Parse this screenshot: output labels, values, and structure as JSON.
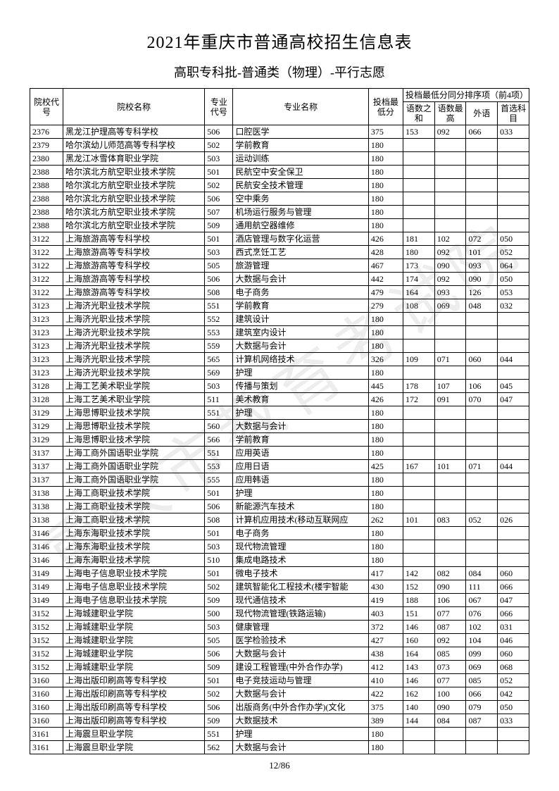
{
  "title": "2021年重庆市普通高校招生信息表",
  "subtitle": "高职专科批-普通类（物理）-平行志愿",
  "watermark": "重庆市教育考试院",
  "pager": "12/86",
  "headers": {
    "school_code": "院校代号",
    "school_name": "院校名称",
    "major_code": "专业代号",
    "major_name": "专业名称",
    "min_score": "投档最低分",
    "tiebreak_group": "投档最低分同分排序项（前4项）",
    "s1": "语数之和",
    "s2": "语数最高",
    "s3": "外语",
    "s4": "首选科目"
  },
  "rows": [
    [
      "2376",
      "黑龙江护理高等专科学校",
      "506",
      "口腔医学",
      "375",
      "153",
      "092",
      "066",
      "033"
    ],
    [
      "2379",
      "哈尔滨幼儿师范高等专科学校",
      "502",
      "学前教育",
      "180",
      "",
      "",
      "",
      ""
    ],
    [
      "2380",
      "黑龙江冰雪体育职业学院",
      "503",
      "运动训练",
      "180",
      "",
      "",
      "",
      ""
    ],
    [
      "2388",
      "哈尔滨北方航空职业技术学院",
      "501",
      "民航空中安全保卫",
      "180",
      "",
      "",
      "",
      ""
    ],
    [
      "2388",
      "哈尔滨北方航空职业技术学院",
      "502",
      "民航安全技术管理",
      "180",
      "",
      "",
      "",
      ""
    ],
    [
      "2388",
      "哈尔滨北方航空职业技术学院",
      "506",
      "空中乘务",
      "180",
      "",
      "",
      "",
      ""
    ],
    [
      "2388",
      "哈尔滨北方航空职业技术学院",
      "507",
      "机场运行服务与管理",
      "180",
      "",
      "",
      "",
      ""
    ],
    [
      "2388",
      "哈尔滨北方航空职业技术学院",
      "509",
      "通用航空器维修",
      "180",
      "",
      "",
      "",
      ""
    ],
    [
      "3122",
      "上海旅游高等专科学校",
      "501",
      "酒店管理与数字化运营",
      "426",
      "181",
      "102",
      "072",
      "050"
    ],
    [
      "3122",
      "上海旅游高等专科学校",
      "503",
      "西式烹饪工艺",
      "428",
      "180",
      "092",
      "101",
      "052"
    ],
    [
      "3122",
      "上海旅游高等专科学校",
      "505",
      "旅游管理",
      "467",
      "173",
      "090",
      "093",
      "064"
    ],
    [
      "3122",
      "上海旅游高等专科学校",
      "506",
      "大数据与会计",
      "442",
      "174",
      "092",
      "090",
      "050"
    ],
    [
      "3122",
      "上海旅游高等专科学校",
      "508",
      "电子商务",
      "479",
      "164",
      "093",
      "126",
      "053"
    ],
    [
      "3123",
      "上海济光职业技术学院",
      "551",
      "学前教育",
      "279",
      "108",
      "069",
      "048",
      "032"
    ],
    [
      "3123",
      "上海济光职业技术学院",
      "552",
      "建筑设计",
      "180",
      "",
      "",
      "",
      ""
    ],
    [
      "3123",
      "上海济光职业技术学院",
      "553",
      "建筑室内设计",
      "180",
      "",
      "",
      "",
      ""
    ],
    [
      "3123",
      "上海济光职业技术学院",
      "559",
      "大数据与会计",
      "180",
      "",
      "",
      "",
      ""
    ],
    [
      "3123",
      "上海济光职业技术学院",
      "565",
      "计算机网络技术",
      "326",
      "109",
      "071",
      "060",
      "044"
    ],
    [
      "3123",
      "上海济光职业技术学院",
      "569",
      "护理",
      "180",
      "",
      "",
      "",
      ""
    ],
    [
      "3128",
      "上海工艺美术职业学院",
      "503",
      "传播与策划",
      "445",
      "178",
      "107",
      "106",
      "045"
    ],
    [
      "3128",
      "上海工艺美术职业学院",
      "511",
      "美术教育",
      "426",
      "172",
      "091",
      "070",
      "047"
    ],
    [
      "3129",
      "上海思博职业技术学院",
      "551",
      "护理",
      "180",
      "",
      "",
      "",
      ""
    ],
    [
      "3129",
      "上海思博职业技术学院",
      "560",
      "大数据与会计",
      "180",
      "",
      "",
      "",
      ""
    ],
    [
      "3129",
      "上海思博职业技术学院",
      "566",
      "学前教育",
      "180",
      "",
      "",
      "",
      ""
    ],
    [
      "3137",
      "上海工商外国语职业学院",
      "551",
      "应用英语",
      "180",
      "",
      "",
      "",
      ""
    ],
    [
      "3137",
      "上海工商外国语职业学院",
      "553",
      "应用日语",
      "425",
      "167",
      "101",
      "071",
      "044"
    ],
    [
      "3137",
      "上海工商外国语职业学院",
      "555",
      "应用韩语",
      "180",
      "",
      "",
      "",
      ""
    ],
    [
      "3138",
      "上海工商职业技术学院",
      "501",
      "护理",
      "180",
      "",
      "",
      "",
      ""
    ],
    [
      "3138",
      "上海工商职业技术学院",
      "506",
      "新能源汽车技术",
      "180",
      "",
      "",
      "",
      ""
    ],
    [
      "3138",
      "上海工商职业技术学院",
      "508",
      "计算机应用技术(移动互联网应",
      "262",
      "101",
      "083",
      "052",
      "026"
    ],
    [
      "3146",
      "上海东海职业技术学院",
      "501",
      "电子商务",
      "180",
      "",
      "",
      "",
      ""
    ],
    [
      "3146",
      "上海东海职业技术学院",
      "503",
      "现代物流管理",
      "180",
      "",
      "",
      "",
      ""
    ],
    [
      "3146",
      "上海东海职业技术学院",
      "510",
      "集成电路技术",
      "180",
      "",
      "",
      "",
      ""
    ],
    [
      "3149",
      "上海电子信息职业技术学院",
      "501",
      "微电子技术",
      "417",
      "142",
      "082",
      "084",
      "060"
    ],
    [
      "3149",
      "上海电子信息职业技术学院",
      "502",
      "建筑智能化工程技术(楼宇智能",
      "430",
      "152",
      "090",
      "111",
      "066"
    ],
    [
      "3149",
      "上海电子信息职业技术学院",
      "509",
      "现代通信技术",
      "419",
      "188",
      "106",
      "067",
      "047"
    ],
    [
      "3152",
      "上海城建职业学院",
      "500",
      "现代物流管理(铁路运输)",
      "403",
      "151",
      "077",
      "076",
      "066"
    ],
    [
      "3152",
      "上海城建职业学院",
      "503",
      "健康管理",
      "372",
      "146",
      "087",
      "102",
      "031"
    ],
    [
      "3152",
      "上海城建职业学院",
      "505",
      "医学检验技术",
      "427",
      "160",
      "092",
      "104",
      "046"
    ],
    [
      "3152",
      "上海城建职业学院",
      "506",
      "大数据与会计",
      "438",
      "164",
      "085",
      "099",
      "060"
    ],
    [
      "3152",
      "上海城建职业学院",
      "509",
      "建设工程管理(中外合作办学)",
      "412",
      "143",
      "073",
      "069",
      "068"
    ],
    [
      "3160",
      "上海出版印刷高等专科学校",
      "501",
      "电子竞技运动与管理",
      "410",
      "146",
      "077",
      "085",
      "052"
    ],
    [
      "3160",
      "上海出版印刷高等专科学校",
      "502",
      "大数据与会计",
      "422",
      "162",
      "100",
      "066",
      "042"
    ],
    [
      "3160",
      "上海出版印刷高等专科学校",
      "506",
      "出版商务(中外合作办学)(文化",
      "375",
      "140",
      "090",
      "079",
      "050"
    ],
    [
      "3160",
      "上海出版印刷高等专科学校",
      "509",
      "大数据技术",
      "389",
      "144",
      "084",
      "087",
      "033"
    ],
    [
      "3161",
      "上海震旦职业学院",
      "551",
      "护理",
      "180",
      "",
      "",
      "",
      ""
    ],
    [
      "3161",
      "上海震旦职业学院",
      "562",
      "大数据与会计",
      "180",
      "",
      "",
      "",
      ""
    ]
  ]
}
